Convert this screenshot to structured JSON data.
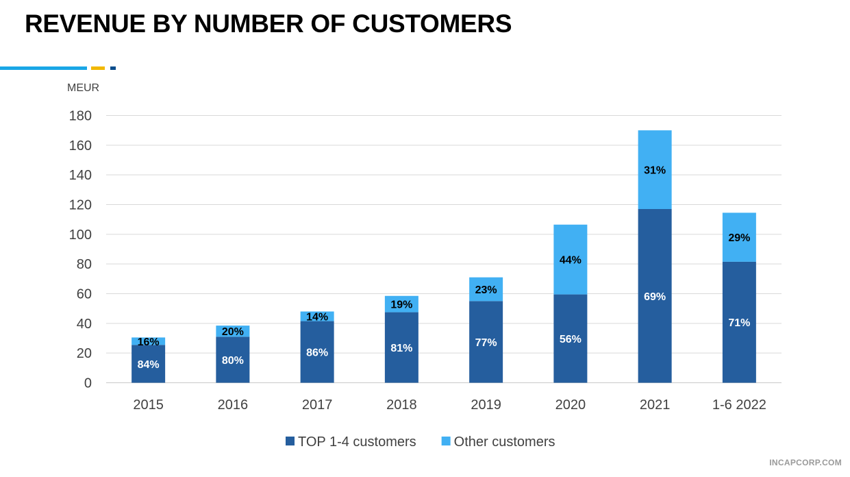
{
  "page": {
    "title": "REVENUE BY NUMBER OF CUSTOMERS",
    "footer": "INCAPCORP.COM",
    "accent_colors": [
      "#1aa6e6",
      "#f2b800",
      "#0a4d8c"
    ]
  },
  "chart_data": {
    "type": "bar",
    "stacked": true,
    "title": "",
    "unit_label": "MEUR",
    "xlabel": "",
    "ylabel": "",
    "ylim": [
      0,
      180
    ],
    "yticks": [
      0,
      20,
      40,
      60,
      80,
      100,
      120,
      140,
      160,
      180
    ],
    "grid": true,
    "legend_position": "bottom",
    "categories": [
      "2015",
      "2016",
      "2017",
      "2018",
      "2019",
      "2020",
      "2021",
      "1-6 2022"
    ],
    "series": [
      {
        "name": "TOP 1-4 customers",
        "color": "#255e9e",
        "values": [
          25.5,
          31,
          41.5,
          47.5,
          55,
          59.5,
          117,
          81.5
        ],
        "labels": [
          "84%",
          "80%",
          "86%",
          "81%",
          "77%",
          "56%",
          "69%",
          "71%"
        ],
        "label_color": "#ffffff"
      },
      {
        "name": "Other customers",
        "color": "#41b0f3",
        "values": [
          5,
          7.5,
          6.5,
          11,
          16,
          47,
          53,
          33
        ],
        "labels": [
          "16%",
          "20%",
          "14%",
          "19%",
          "23%",
          "44%",
          "31%",
          "29%"
        ],
        "label_color": "#000000"
      }
    ]
  }
}
